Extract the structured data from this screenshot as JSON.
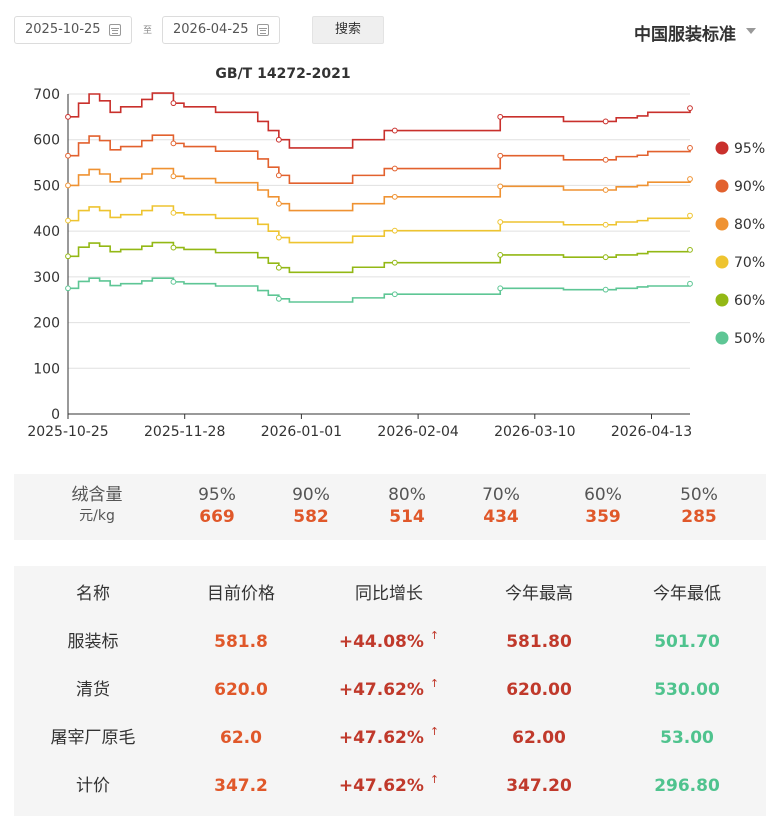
{
  "filters": {
    "start_date": "2025-10-25",
    "separator": "至",
    "end_date": "2026-04-25",
    "search_label": "搜索",
    "standard": "中国服装标准"
  },
  "chart_data": {
    "type": "line",
    "title": "GB/T 14272-2021",
    "ylim": [
      0,
      700
    ],
    "yticks": [
      0,
      100,
      200,
      300,
      400,
      500,
      600,
      700
    ],
    "x_tick_labels": [
      "2025-10-25",
      "2025-11-28",
      "2026-01-01",
      "2026-02-04",
      "2026-03-10",
      "2026-04-13"
    ],
    "step": true,
    "grid": true,
    "legend_position": "right",
    "series": [
      {
        "name": "95%",
        "color": "#c9302c",
        "values": [
          650,
          680,
          700,
          685,
          660,
          672,
          672,
          688,
          702,
          702,
          680,
          672,
          672,
          672,
          660,
          660,
          660,
          660,
          640,
          620,
          600,
          582,
          582,
          582,
          582,
          582,
          582,
          600,
          600,
          600,
          620,
          620,
          620,
          620,
          620,
          620,
          620,
          620,
          620,
          620,
          620,
          650,
          650,
          650,
          650,
          650,
          650,
          640,
          640,
          640,
          640,
          640,
          648,
          648,
          652,
          660,
          660,
          660,
          660,
          669
        ]
      },
      {
        "name": "90%",
        "color": "#e2612e",
        "values": [
          565,
          593,
          608,
          598,
          578,
          585,
          585,
          598,
          610,
          610,
          592,
          585,
          585,
          585,
          575,
          575,
          575,
          575,
          558,
          540,
          522,
          505,
          505,
          505,
          505,
          505,
          505,
          522,
          522,
          522,
          537,
          537,
          537,
          537,
          537,
          537,
          537,
          537,
          537,
          537,
          537,
          565,
          565,
          565,
          565,
          565,
          565,
          556,
          556,
          556,
          556,
          556,
          563,
          563,
          566,
          574,
          574,
          574,
          574,
          582
        ]
      },
      {
        "name": "80%",
        "color": "#ef9232",
        "values": [
          500,
          523,
          535,
          525,
          508,
          515,
          515,
          525,
          537,
          537,
          520,
          515,
          515,
          515,
          506,
          506,
          506,
          506,
          490,
          475,
          460,
          445,
          445,
          445,
          445,
          445,
          445,
          460,
          460,
          460,
          475,
          475,
          475,
          475,
          475,
          475,
          475,
          475,
          475,
          475,
          475,
          498,
          498,
          498,
          498,
          498,
          498,
          490,
          490,
          490,
          490,
          490,
          497,
          497,
          500,
          507,
          507,
          507,
          507,
          514
        ]
      },
      {
        "name": "70%",
        "color": "#eec430",
        "values": [
          423,
          445,
          453,
          445,
          430,
          436,
          436,
          445,
          455,
          455,
          440,
          436,
          436,
          436,
          428,
          428,
          428,
          428,
          415,
          400,
          386,
          375,
          375,
          375,
          375,
          375,
          375,
          389,
          389,
          389,
          401,
          401,
          401,
          401,
          401,
          401,
          401,
          401,
          401,
          401,
          401,
          420,
          420,
          420,
          420,
          420,
          420,
          414,
          414,
          414,
          414,
          414,
          420,
          420,
          423,
          428,
          428,
          428,
          428,
          434
        ]
      },
      {
        "name": "60%",
        "color": "#93b815",
        "values": [
          345,
          365,
          374,
          367,
          355,
          360,
          360,
          367,
          375,
          375,
          364,
          360,
          360,
          360,
          353,
          353,
          353,
          353,
          342,
          330,
          320,
          310,
          310,
          310,
          310,
          310,
          310,
          321,
          321,
          321,
          331,
          331,
          331,
          331,
          331,
          331,
          331,
          331,
          331,
          331,
          331,
          348,
          348,
          348,
          348,
          348,
          348,
          343,
          343,
          343,
          343,
          343,
          348,
          348,
          351,
          355,
          355,
          355,
          355,
          359
        ]
      },
      {
        "name": "50%",
        "color": "#5ec695",
        "values": [
          275,
          290,
          297,
          291,
          281,
          285,
          285,
          291,
          297,
          297,
          289,
          285,
          285,
          285,
          280,
          280,
          280,
          280,
          270,
          260,
          252,
          245,
          245,
          245,
          245,
          245,
          245,
          254,
          254,
          254,
          262,
          262,
          262,
          262,
          262,
          262,
          262,
          262,
          262,
          262,
          262,
          275,
          275,
          275,
          275,
          275,
          275,
          272,
          272,
          272,
          272,
          272,
          275,
          275,
          278,
          280,
          280,
          280,
          280,
          285
        ]
      }
    ]
  },
  "summary": {
    "label": "绒含量",
    "unit": "元/kg",
    "items": [
      {
        "grade": "95%",
        "value": "669"
      },
      {
        "grade": "90%",
        "value": "582"
      },
      {
        "grade": "80%",
        "value": "514"
      },
      {
        "grade": "70%",
        "value": "434"
      },
      {
        "grade": "60%",
        "value": "359"
      },
      {
        "grade": "50%",
        "value": "285"
      }
    ]
  },
  "table": {
    "headers": [
      "名称",
      "目前价格",
      "同比增长",
      "今年最高",
      "今年最低"
    ],
    "arrow": "↑",
    "rows": [
      {
        "name": "服装标",
        "price": "581.8",
        "growth": "+44.08%",
        "high": "581.80",
        "low": "501.70"
      },
      {
        "name": "清货",
        "price": "620.0",
        "growth": "+47.62%",
        "high": "620.00",
        "low": "530.00"
      },
      {
        "name": "屠宰厂原毛",
        "price": "62.0",
        "growth": "+47.62%",
        "high": "62.00",
        "low": "53.00"
      },
      {
        "name": "计价",
        "price": "347.2",
        "growth": "+47.62%",
        "high": "347.20",
        "low": "296.80"
      }
    ]
  }
}
